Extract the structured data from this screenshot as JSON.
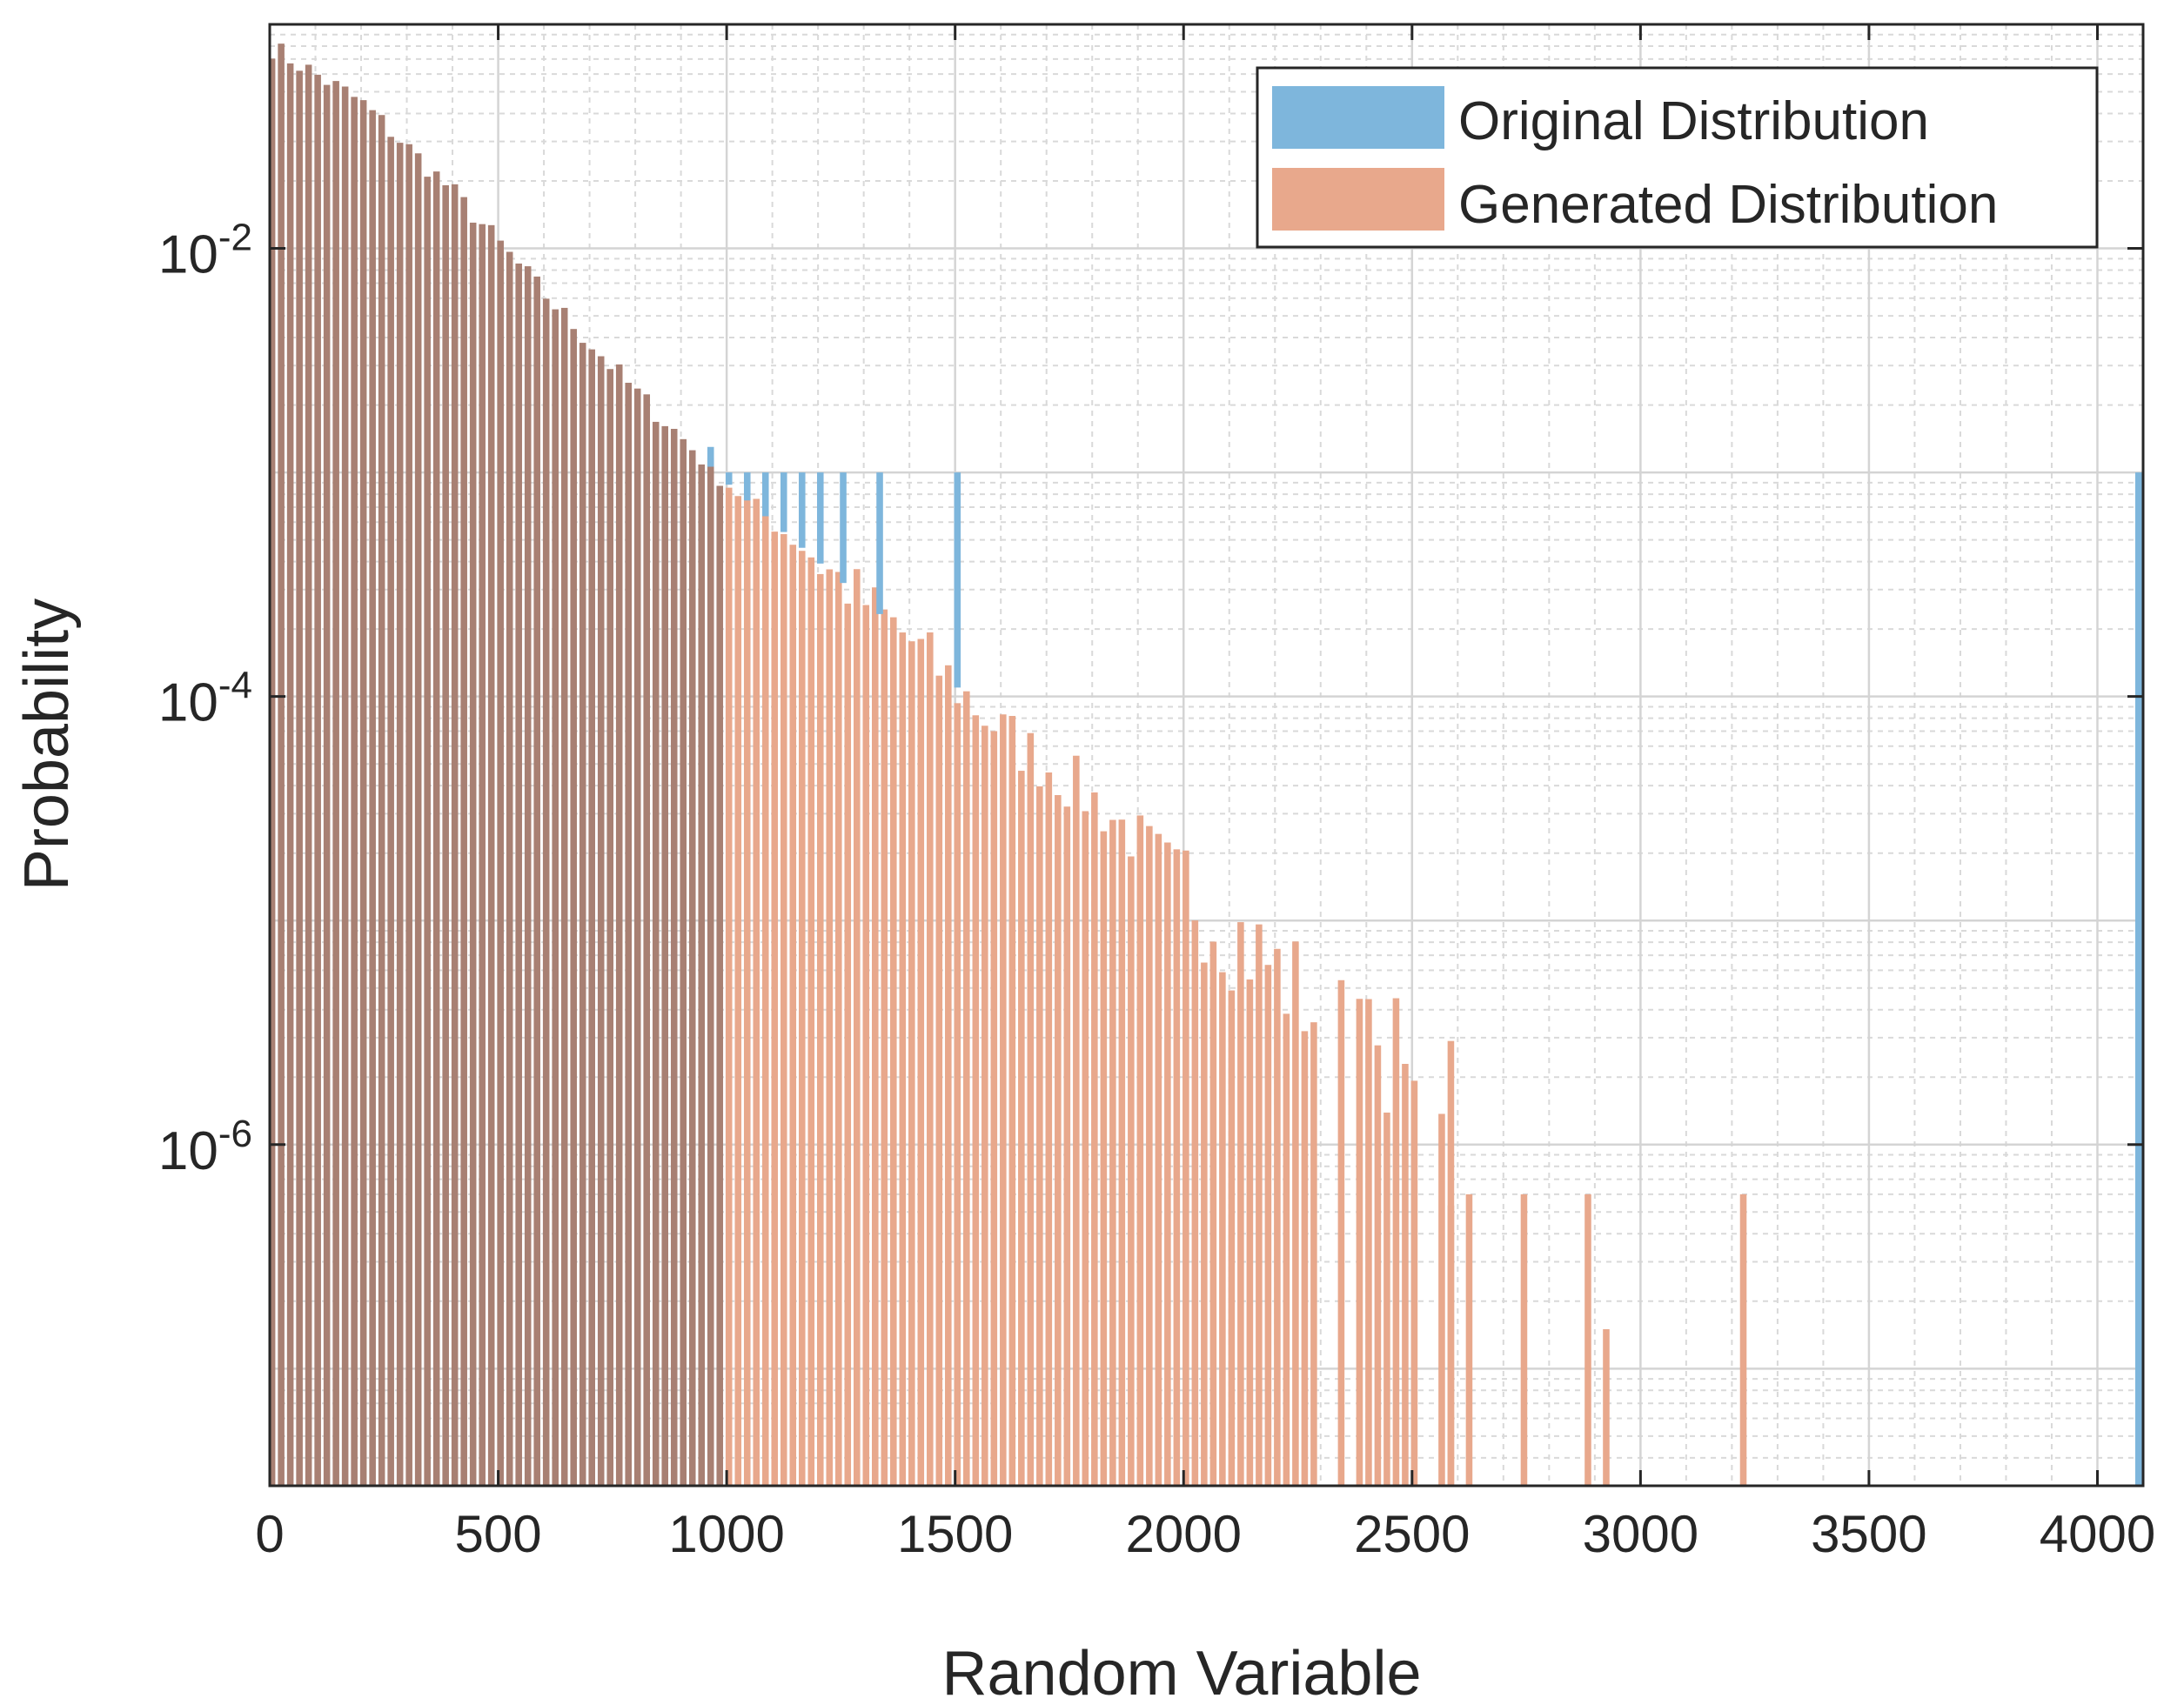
{
  "chart_data": {
    "type": "bar",
    "xlabel": "Random Variable",
    "ylabel": "Probability",
    "x_scale": "linear",
    "y_scale": "log",
    "xlim": [
      0,
      4100
    ],
    "ylim": [
      3e-08,
      0.1
    ],
    "grid": "major and minor",
    "legend_placement": "top-right",
    "x_ticks": [
      "0",
      "500",
      "1000",
      "1500",
      "2000",
      "2500",
      "3000",
      "3500",
      "4000"
    ],
    "y_ticks": [
      {
        "value": 0.01,
        "base": "10",
        "exp": "-2"
      },
      {
        "value": 0.0001,
        "base": "10",
        "exp": "-4"
      },
      {
        "value": 1e-06,
        "base": "10",
        "exp": "-6"
      }
    ],
    "bin_width": 20,
    "series": [
      {
        "name": "Original Distribution",
        "color": "#7EB6DC",
        "spikes": [
          {
            "x": 885,
            "y": 0.0013
          },
          {
            "x": 965,
            "y": 0.0013
          },
          {
            "x": 1005,
            "y": 0.001
          },
          {
            "x": 1045,
            "y": 0.001
          },
          {
            "x": 1085,
            "y": 0.001
          },
          {
            "x": 1125,
            "y": 0.001
          },
          {
            "x": 1165,
            "y": 0.001
          },
          {
            "x": 1205,
            "y": 0.001
          },
          {
            "x": 1255,
            "y": 0.001
          },
          {
            "x": 1335,
            "y": 0.001
          },
          {
            "x": 1505,
            "y": 0.001
          },
          {
            "x": 4090,
            "y": 0.001
          }
        ]
      },
      {
        "name": "Generated Distribution",
        "color": "#E8A88C",
        "trend": [
          [
            0,
            0.08
          ],
          [
            200,
            0.045
          ],
          [
            400,
            0.018
          ],
          [
            600,
            0.0063
          ],
          [
            800,
            0.0023
          ],
          [
            1000,
            0.0009
          ],
          [
            1200,
            0.0004
          ],
          [
            1400,
            0.00018
          ],
          [
            1600,
            7e-05
          ],
          [
            1800,
            3.5e-05
          ],
          [
            2000,
            1.5e-05
          ],
          [
            2200,
            6e-06
          ],
          [
            2400,
            2.5e-06
          ],
          [
            2600,
            9e-07
          ]
        ],
        "outliers": [
          {
            "x": 2465,
            "y": 4.5e-06
          },
          {
            "x": 2585,
            "y": 2.9e-06
          },
          {
            "x": 2625,
            "y": 6e-07
          },
          {
            "x": 2745,
            "y": 6e-07
          },
          {
            "x": 2885,
            "y": 6e-07
          },
          {
            "x": 2925,
            "y": 1.5e-07
          },
          {
            "x": 3225,
            "y": 6e-07
          }
        ]
      }
    ],
    "overlap_color": "#A88073"
  }
}
